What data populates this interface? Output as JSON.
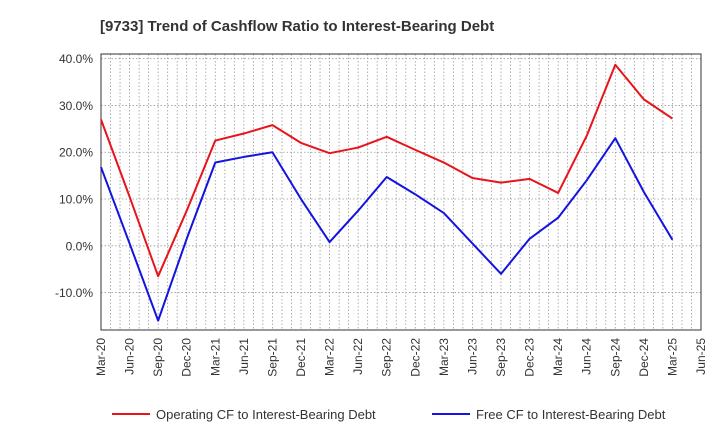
{
  "chart_data": {
    "type": "line",
    "title": "[9733]  Trend of Cashflow Ratio to Interest-Bearing Debt",
    "xlabel": "",
    "ylabel": "",
    "x": [
      "Mar-20",
      "Jun-20",
      "Sep-20",
      "Dec-20",
      "Mar-21",
      "Jun-21",
      "Sep-21",
      "Dec-21",
      "Mar-22",
      "Jun-22",
      "Sep-22",
      "Dec-22",
      "Mar-23",
      "Jun-23",
      "Sep-23",
      "Dec-23",
      "Mar-24",
      "Jun-24",
      "Sep-24",
      "Dec-24",
      "Mar-25",
      "Jun-25"
    ],
    "ylim": [
      -18,
      41
    ],
    "yticks": [
      40,
      30,
      20,
      10,
      0,
      -10
    ],
    "ytick_labels": [
      "40.0%",
      "30.0%",
      "20.0%",
      "10.0%",
      "0.0%",
      "-10.0%"
    ],
    "grid": true,
    "legend_position": "bottom",
    "series": [
      {
        "name": "Operating CF to Interest-Bearing Debt",
        "color": "#e8141b",
        "values": [
          27.0,
          10.5,
          -6.5,
          7.5,
          22.5,
          24.0,
          25.8,
          22.0,
          19.8,
          21.0,
          23.3,
          20.5,
          17.8,
          14.5,
          13.5,
          14.3,
          11.3,
          23.5,
          38.7,
          31.3,
          27.2,
          null
        ]
      },
      {
        "name": "Free CF to Interest-Bearing Debt",
        "color": "#1414e0",
        "values": [
          16.8,
          0.5,
          -16.0,
          1.5,
          17.8,
          19.0,
          20.0,
          10.0,
          0.8,
          7.5,
          14.7,
          11.0,
          7.0,
          0.5,
          -6.0,
          1.5,
          6.0,
          14.0,
          23.0,
          11.5,
          1.3,
          null
        ]
      }
    ]
  }
}
